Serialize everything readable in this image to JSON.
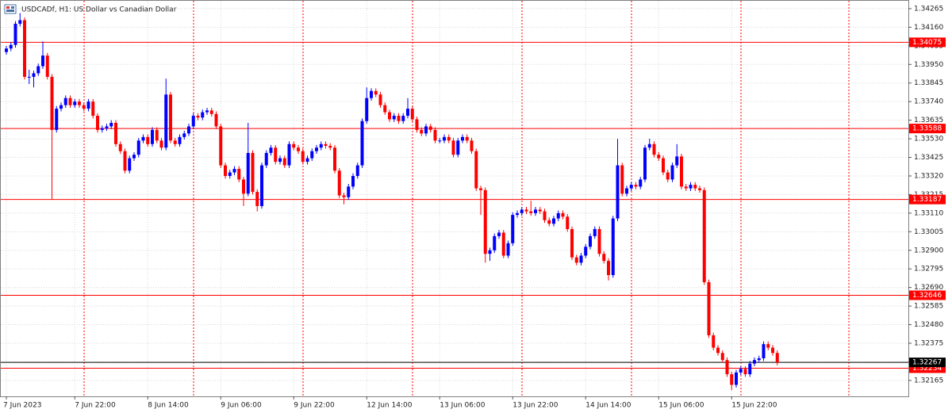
{
  "chart_data": {
    "type": "candlestick",
    "title": "USDCADf, H1:  US Dollar vs Canadian Dollar",
    "up_color": "#0000ff",
    "down_color": "#ff0000",
    "grid": true,
    "ylim": [
      1.32075,
      1.34305
    ],
    "yticks": [
      1.34265,
      {
        "value": 1.3416,
        "label": "1.34160"
      },
      1.34055,
      {
        "value": 1.3395,
        "label": "1.33950"
      },
      1.33845,
      {
        "value": 1.3374,
        "label": "1.33740"
      },
      1.33635,
      {
        "value": 1.3353,
        "label": "1.33530"
      },
      1.33425,
      {
        "value": 1.3332,
        "label": "1.33320"
      },
      1.33215,
      {
        "value": 1.3311,
        "label": "1.33110"
      },
      1.33005,
      {
        "value": 1.329,
        "label": "1.32900"
      },
      1.32795,
      {
        "value": 1.3269,
        "label": "1.32690"
      },
      1.32585,
      {
        "value": 1.3248,
        "label": "1.32480"
      },
      1.32375,
      {
        "value": 1.3227,
        "label": "1.32270"
      },
      1.32165
    ],
    "price_lines": [
      {
        "value": 1.34075,
        "color": "#ff0000"
      },
      {
        "value": 1.33588,
        "color": "#ff0000"
      },
      {
        "value": 1.33187,
        "color": "#ff0000"
      },
      {
        "value": 1.32646,
        "color": "#ff0000"
      },
      {
        "value": 1.32234,
        "color": "#ff0000"
      }
    ],
    "current_price": {
      "value": 1.32267,
      "color": "#000000"
    },
    "categories": [
      "7 Jun 2023",
      null,
      null,
      null,
      null,
      null,
      null,
      null,
      null,
      null,
      null,
      null,
      null,
      null,
      null,
      "7 Jun 22:00",
      null,
      null,
      null,
      null,
      null,
      null,
      null,
      null,
      null,
      null,
      null,
      null,
      null,
      null,
      null,
      "8 Jun 14:00",
      null,
      null,
      null,
      null,
      null,
      null,
      null,
      null,
      null,
      null,
      null,
      null,
      null,
      null,
      null,
      "9 Jun 06:00",
      null,
      null,
      null,
      null,
      null,
      null,
      null,
      null,
      null,
      null,
      null,
      null,
      null,
      null,
      null,
      "9 Jun 22:00",
      null,
      null,
      null,
      null,
      null,
      null,
      null,
      null,
      null,
      null,
      null,
      null,
      null,
      null,
      null,
      "12 Jun 14:00",
      null,
      null,
      null,
      null,
      null,
      null,
      null,
      null,
      null,
      null,
      null,
      null,
      null,
      null,
      null,
      "13 Jun 06:00",
      null,
      null,
      null,
      null,
      null,
      null,
      null,
      null,
      null,
      null,
      null,
      null,
      null,
      null,
      null,
      "13 Jun 22:00",
      null,
      null,
      null,
      null,
      null,
      null,
      null,
      null,
      null,
      null,
      null,
      null,
      null,
      null,
      null,
      "14 Jun 14:00",
      null,
      null,
      null,
      null,
      null,
      null,
      null,
      null,
      null,
      null,
      null,
      null,
      null,
      null,
      null,
      "15 Jun 06:00",
      null,
      null,
      null,
      null,
      null,
      null,
      null,
      null,
      null,
      null,
      null,
      null,
      null,
      null,
      null,
      "15 Jun 22:00",
      null,
      null,
      null,
      null,
      null,
      null,
      null,
      null,
      null,
      null
    ],
    "ohlc": [
      [
        1.3402,
        1.34055,
        1.34005,
        1.3404
      ],
      [
        1.3404,
        1.34075,
        1.34025,
        1.3406
      ],
      [
        1.3406,
        1.34195,
        1.34045,
        1.3418
      ],
      [
        1.3418,
        1.3424,
        1.34165,
        1.342
      ],
      [
        1.342,
        1.34215,
        1.33865,
        1.3388
      ],
      [
        1.3388,
        1.3392,
        1.3384,
        1.3388
      ],
      [
        1.3388,
        1.33915,
        1.3382,
        1.339
      ],
      [
        1.339,
        1.33955,
        1.33885,
        1.3394
      ],
      [
        1.3394,
        1.3408,
        1.33925,
        1.34
      ],
      [
        1.34,
        1.34015,
        1.33865,
        1.3388
      ],
      [
        1.3388,
        1.33895,
        1.3319,
        1.3358
      ],
      [
        1.3358,
        1.33715,
        1.33565,
        1.337
      ],
      [
        1.337,
        1.33735,
        1.33685,
        1.3372
      ],
      [
        1.3372,
        1.33775,
        1.33705,
        1.3376
      ],
      [
        1.3376,
        1.33775,
        1.33705,
        1.3372
      ],
      [
        1.3372,
        1.33755,
        1.33705,
        1.3374
      ],
      [
        1.3374,
        1.33755,
        1.33705,
        1.3372
      ],
      [
        1.3372,
        1.33735,
        1.33685,
        1.337
      ],
      [
        1.337,
        1.33755,
        1.33685,
        1.3374
      ],
      [
        1.3374,
        1.33755,
        1.33645,
        1.3366
      ],
      [
        1.3366,
        1.33675,
        1.33565,
        1.3358
      ],
      [
        1.3358,
        1.33605,
        1.33565,
        1.3359
      ],
      [
        1.3359,
        1.33615,
        1.33575,
        1.336
      ],
      [
        1.336,
        1.33635,
        1.33585,
        1.3362
      ],
      [
        1.3362,
        1.33635,
        1.33485,
        1.335
      ],
      [
        1.335,
        1.33515,
        1.33445,
        1.3346
      ],
      [
        1.3346,
        1.33475,
        1.33335,
        1.3335
      ],
      [
        1.3335,
        1.33435,
        1.33335,
        1.3342
      ],
      [
        1.3342,
        1.33455,
        1.33405,
        1.3344
      ],
      [
        1.3344,
        1.33535,
        1.33425,
        1.3352
      ],
      [
        1.3352,
        1.33555,
        1.33505,
        1.3354
      ],
      [
        1.3354,
        1.33555,
        1.33485,
        1.335
      ],
      [
        1.335,
        1.33595,
        1.33485,
        1.3358
      ],
      [
        1.3358,
        1.33595,
        1.33505,
        1.3352
      ],
      [
        1.3352,
        1.33535,
        1.33465,
        1.3348
      ],
      [
        1.3348,
        1.3387,
        1.33465,
        1.3378
      ],
      [
        1.3378,
        1.33795,
        1.33505,
        1.3352
      ],
      [
        1.3352,
        1.33535,
        1.33485,
        1.335
      ],
      [
        1.335,
        1.33555,
        1.33485,
        1.3354
      ],
      [
        1.3354,
        1.33575,
        1.33525,
        1.3356
      ],
      [
        1.3356,
        1.33615,
        1.33545,
        1.336
      ],
      [
        1.336,
        1.33675,
        1.33585,
        1.3366
      ],
      [
        1.3366,
        1.33675,
        1.33635,
        1.3365
      ],
      [
        1.3365,
        1.33695,
        1.33635,
        1.3368
      ],
      [
        1.3368,
        1.33705,
        1.33665,
        1.3369
      ],
      [
        1.3369,
        1.33705,
        1.33655,
        1.3367
      ],
      [
        1.3367,
        1.33685,
        1.33585,
        1.336
      ],
      [
        1.336,
        1.33615,
        1.33365,
        1.3338
      ],
      [
        1.3338,
        1.33395,
        1.33305,
        1.3332
      ],
      [
        1.3332,
        1.33355,
        1.33305,
        1.3334
      ],
      [
        1.3334,
        1.33375,
        1.33325,
        1.3336
      ],
      [
        1.3336,
        1.33375,
        1.33285,
        1.333
      ],
      [
        1.333,
        1.33315,
        1.3315,
        1.3322
      ],
      [
        1.3322,
        1.3362,
        1.33205,
        1.3345
      ],
      [
        1.3345,
        1.33465,
        1.33215,
        1.3323
      ],
      [
        1.3323,
        1.33245,
        1.3312,
        1.3315
      ],
      [
        1.3315,
        1.33395,
        1.33135,
        1.3338
      ],
      [
        1.3338,
        1.33465,
        1.33365,
        1.3345
      ],
      [
        1.3345,
        1.33495,
        1.33435,
        1.3348
      ],
      [
        1.3348,
        1.33495,
        1.33385,
        1.334
      ],
      [
        1.334,
        1.33435,
        1.33385,
        1.3342
      ],
      [
        1.3342,
        1.33435,
        1.33365,
        1.3338
      ],
      [
        1.3338,
        1.33515,
        1.33365,
        1.335
      ],
      [
        1.335,
        1.33515,
        1.33465,
        1.3348
      ],
      [
        1.3348,
        1.33495,
        1.33445,
        1.3346
      ],
      [
        1.3346,
        1.33475,
        1.33385,
        1.334
      ],
      [
        1.334,
        1.33435,
        1.33385,
        1.3342
      ],
      [
        1.3342,
        1.33475,
        1.33405,
        1.3346
      ],
      [
        1.3346,
        1.33495,
        1.33445,
        1.3348
      ],
      [
        1.3348,
        1.33515,
        1.33465,
        1.335
      ],
      [
        1.335,
        1.33515,
        1.33475,
        1.3349
      ],
      [
        1.3349,
        1.33505,
        1.33465,
        1.3348
      ],
      [
        1.3348,
        1.33495,
        1.33335,
        1.3335
      ],
      [
        1.3335,
        1.33365,
        1.33195,
        1.3321
      ],
      [
        1.3321,
        1.33225,
        1.3316,
        1.332
      ],
      [
        1.332,
        1.33275,
        1.33185,
        1.3326
      ],
      [
        1.3326,
        1.33335,
        1.33245,
        1.3332
      ],
      [
        1.3332,
        1.33395,
        1.33305,
        1.3338
      ],
      [
        1.3338,
        1.33645,
        1.33365,
        1.3363
      ],
      [
        1.3363,
        1.3382,
        1.33615,
        1.3376
      ],
      [
        1.3376,
        1.33815,
        1.33745,
        1.338
      ],
      [
        1.338,
        1.33815,
        1.33765,
        1.3378
      ],
      [
        1.3378,
        1.33795,
        1.33705,
        1.3372
      ],
      [
        1.3372,
        1.33735,
        1.33665,
        1.3368
      ],
      [
        1.3368,
        1.33695,
        1.33625,
        1.3364
      ],
      [
        1.3364,
        1.33675,
        1.33625,
        1.3366
      ],
      [
        1.3366,
        1.33675,
        1.33615,
        1.3363
      ],
      [
        1.3363,
        1.33675,
        1.33615,
        1.3366
      ],
      [
        1.3366,
        1.3376,
        1.33645,
        1.337
      ],
      [
        1.337,
        1.33715,
        1.33625,
        1.3364
      ],
      [
        1.3364,
        1.33655,
        1.33565,
        1.3358
      ],
      [
        1.3358,
        1.33595,
        1.33545,
        1.3356
      ],
      [
        1.3356,
        1.33615,
        1.33545,
        1.336
      ],
      [
        1.336,
        1.33615,
        1.33565,
        1.3358
      ],
      [
        1.3358,
        1.33595,
        1.33505,
        1.3352
      ],
      [
        1.3352,
        1.33535,
        1.33505,
        1.3352
      ],
      [
        1.3352,
        1.33555,
        1.33505,
        1.3354
      ],
      [
        1.3354,
        1.33555,
        1.33505,
        1.3352
      ],
      [
        1.3352,
        1.33535,
        1.33425,
        1.3344
      ],
      [
        1.3344,
        1.33535,
        1.33425,
        1.3352
      ],
      [
        1.3352,
        1.33555,
        1.33505,
        1.3354
      ],
      [
        1.3354,
        1.33555,
        1.33505,
        1.3352
      ],
      [
        1.3352,
        1.33535,
        1.33445,
        1.3346
      ],
      [
        1.3346,
        1.33475,
        1.33235,
        1.3325
      ],
      [
        1.3325,
        1.33265,
        1.331,
        1.3324
      ],
      [
        1.3324,
        1.33255,
        1.3283,
        1.3288
      ],
      [
        1.3288,
        1.32915,
        1.3284,
        1.329
      ],
      [
        1.329,
        1.32995,
        1.32885,
        1.3298
      ],
      [
        1.3298,
        1.33015,
        1.32965,
        1.33
      ],
      [
        1.33,
        1.33015,
        1.32855,
        1.3287
      ],
      [
        1.3287,
        1.32955,
        1.32855,
        1.3294
      ],
      [
        1.3294,
        1.33115,
        1.32925,
        1.331
      ],
      [
        1.331,
        1.33125,
        1.33085,
        1.3311
      ],
      [
        1.3311,
        1.33145,
        1.33095,
        1.3313
      ],
      [
        1.3313,
        1.33145,
        1.33105,
        1.3312
      ],
      [
        1.3312,
        1.3318,
        1.33095,
        1.3311
      ],
      [
        1.3311,
        1.33145,
        1.33095,
        1.3313
      ],
      [
        1.3313,
        1.33145,
        1.33105,
        1.3312
      ],
      [
        1.3312,
        1.33135,
        1.33055,
        1.3307
      ],
      [
        1.3307,
        1.33085,
        1.33035,
        1.3305
      ],
      [
        1.3305,
        1.33095,
        1.33035,
        1.3308
      ],
      [
        1.3308,
        1.33125,
        1.33065,
        1.3311
      ],
      [
        1.3311,
        1.33125,
        1.33075,
        1.3309
      ],
      [
        1.3309,
        1.33105,
        1.33005,
        1.3302
      ],
      [
        1.3302,
        1.33035,
        1.32845,
        1.3286
      ],
      [
        1.3286,
        1.32875,
        1.32815,
        1.3283
      ],
      [
        1.3283,
        1.32885,
        1.32815,
        1.3287
      ],
      [
        1.3287,
        1.32935,
        1.32855,
        1.3292
      ],
      [
        1.3292,
        1.32995,
        1.32905,
        1.3298
      ],
      [
        1.3298,
        1.33035,
        1.32965,
        1.3302
      ],
      [
        1.3302,
        1.33035,
        1.32865,
        1.3288
      ],
      [
        1.3288,
        1.32895,
        1.32825,
        1.3284
      ],
      [
        1.3284,
        1.32855,
        1.3273,
        1.3276
      ],
      [
        1.3276,
        1.33095,
        1.32745,
        1.3308
      ],
      [
        1.3308,
        1.3353,
        1.33065,
        1.3338
      ],
      [
        1.3338,
        1.33395,
        1.33205,
        1.3322
      ],
      [
        1.3322,
        1.33265,
        1.33205,
        1.3325
      ],
      [
        1.3325,
        1.33285,
        1.33235,
        1.3327
      ],
      [
        1.3327,
        1.33285,
        1.33245,
        1.3326
      ],
      [
        1.3326,
        1.33315,
        1.33245,
        1.333
      ],
      [
        1.333,
        1.33495,
        1.33285,
        1.3348
      ],
      [
        1.3348,
        1.3353,
        1.33465,
        1.335
      ],
      [
        1.335,
        1.33515,
        1.33425,
        1.3344
      ],
      [
        1.3344,
        1.33455,
        1.33405,
        1.3342
      ],
      [
        1.3342,
        1.33435,
        1.33325,
        1.3334
      ],
      [
        1.3334,
        1.33355,
        1.33285,
        1.333
      ],
      [
        1.333,
        1.33395,
        1.33285,
        1.3338
      ],
      [
        1.3338,
        1.335,
        1.33365,
        1.3343
      ],
      [
        1.3343,
        1.33445,
        1.33245,
        1.3326
      ],
      [
        1.3326,
        1.33275,
        1.33235,
        1.3325
      ],
      [
        1.3325,
        1.33285,
        1.33235,
        1.3327
      ],
      [
        1.3327,
        1.33285,
        1.33235,
        1.3325
      ],
      [
        1.3325,
        1.33265,
        1.33225,
        1.3324
      ],
      [
        1.3324,
        1.33255,
        1.32705,
        1.3272
      ],
      [
        1.3272,
        1.32735,
        1.32405,
        1.3242
      ],
      [
        1.3242,
        1.32435,
        1.32335,
        1.3235
      ],
      [
        1.3235,
        1.32365,
        1.32305,
        1.3232
      ],
      [
        1.3232,
        1.32335,
        1.32265,
        1.3228
      ],
      [
        1.3228,
        1.32295,
        1.32185,
        1.322
      ],
      [
        1.322,
        1.32215,
        1.3211,
        1.3214
      ],
      [
        1.3214,
        1.32225,
        1.32125,
        1.3221
      ],
      [
        1.3221,
        1.32245,
        1.32195,
        1.3223
      ],
      [
        1.3223,
        1.32245,
        1.32185,
        1.322
      ],
      [
        1.322,
        1.32275,
        1.32185,
        1.3226
      ],
      [
        1.3226,
        1.32295,
        1.32245,
        1.3228
      ],
      [
        1.3228,
        1.32305,
        1.32265,
        1.3229
      ],
      [
        1.3229,
        1.32385,
        1.32275,
        1.3237
      ],
      [
        1.3237,
        1.32385,
        1.32335,
        1.3235
      ],
      [
        1.3235,
        1.32365,
        1.32305,
        1.3232
      ],
      [
        1.3232,
        1.32335,
        1.3225,
        1.32267
      ]
    ]
  }
}
